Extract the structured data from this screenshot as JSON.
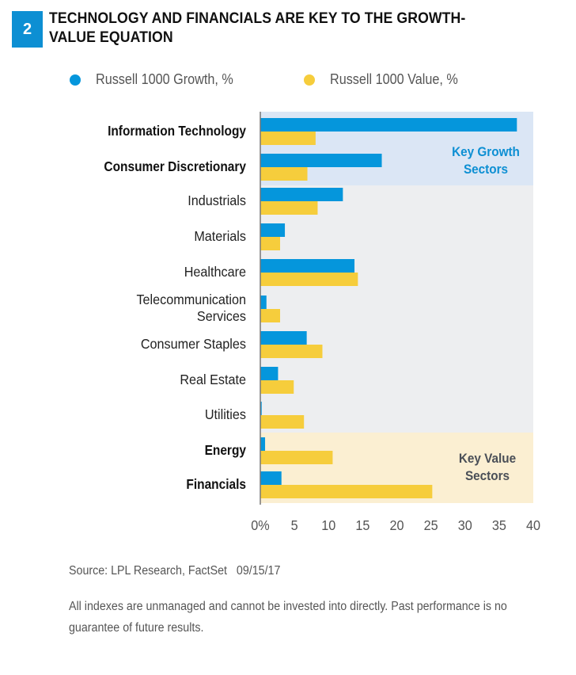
{
  "figure": {
    "number": "2",
    "title": "TECHNOLOGY AND FINANCIALS ARE KEY TO THE GROWTH-VALUE EQUATION",
    "source": "Source: LPL Research, FactSet   09/15/17",
    "disclaimer": "All indexes are unmanaged and cannot be invested into directly. Past performance is no guarantee of future results."
  },
  "colors": {
    "growth": "#0596dc",
    "value": "#f6cd3c",
    "growth_panel": "#dbe6f5",
    "value_panel": "#fbefd2",
    "neutral_panel": "#edeef0",
    "growth_panel_text": "#0d8fd3",
    "value_panel_text": "#4a4f57",
    "badge": "#0d8fd3"
  },
  "chart_data": {
    "type": "bar",
    "orientation": "horizontal",
    "title": "TECHNOLOGY AND FINANCIALS ARE KEY TO THE GROWTH-VALUE EQUATION",
    "xlabel": "",
    "ylabel": "",
    "xlim": [
      0,
      40
    ],
    "x_ticks": [
      0,
      5,
      10,
      15,
      20,
      25,
      30,
      35,
      40
    ],
    "x_tick_labels": [
      "0%",
      "5",
      "10",
      "15",
      "20",
      "25",
      "30",
      "35",
      "40"
    ],
    "grid": false,
    "legend_position": "top-left",
    "categories": [
      "Information Technology",
      "Consumer Discretionary",
      "Industrials",
      "Materials",
      "Healthcare",
      "Telecommunication Services",
      "Consumer Staples",
      "Real Estate",
      "Utilities",
      "Energy",
      "Financials"
    ],
    "category_label_lines": [
      [
        "Information Technology"
      ],
      [
        "Consumer Discretionary"
      ],
      [
        "Industrials"
      ],
      [
        "Materials"
      ],
      [
        "Healthcare"
      ],
      [
        "Telecommunication",
        "Services"
      ],
      [
        "Consumer Staples"
      ],
      [
        "Real Estate"
      ],
      [
        "Utilities"
      ],
      [
        "Energy"
      ],
      [
        "Financials"
      ]
    ],
    "bold_categories": [
      "Information Technology",
      "Consumer Discretionary",
      "Energy",
      "Financials"
    ],
    "series": [
      {
        "name": "Russell 1000 Growth, %",
        "key": "growth",
        "values": [
          37.6,
          17.8,
          12.1,
          3.6,
          13.8,
          0.9,
          6.8,
          2.6,
          0.2,
          0.7,
          3.1
        ]
      },
      {
        "name": "Russell 1000 Value, %",
        "key": "value",
        "values": [
          8.1,
          6.9,
          8.4,
          2.9,
          14.3,
          2.9,
          9.1,
          4.9,
          6.4,
          10.6,
          25.2
        ]
      }
    ],
    "annotations": [
      {
        "text": "Key Growth Sectors",
        "lines": [
          "Key Growth",
          "Sectors"
        ],
        "categories": [
          "Information Technology",
          "Consumer Discretionary"
        ]
      },
      {
        "text": "Key Value Sectors",
        "lines": [
          "Key Value",
          "Sectors"
        ],
        "categories": [
          "Energy",
          "Financials"
        ]
      }
    ]
  }
}
